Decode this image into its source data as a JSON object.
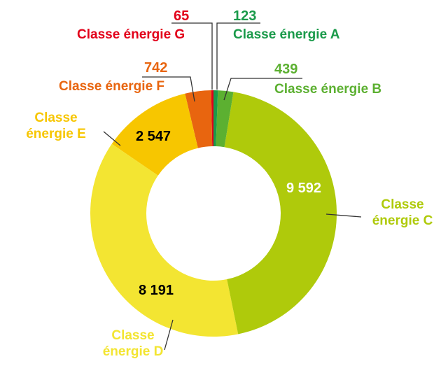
{
  "chart_data": {
    "type": "pie",
    "categories": [
      "Classe énergie A",
      "Classe énergie B",
      "Classe énergie C",
      "Classe énergie D",
      "Classe énergie E",
      "Classe énergie F",
      "Classe énergie G"
    ],
    "values": [
      123,
      439,
      9592,
      8191,
      2547,
      742,
      65
    ],
    "value_labels": [
      "123",
      "439",
      "9 592",
      "8 191",
      "2 547",
      "742",
      "65"
    ],
    "colors": [
      "#1a9a4a",
      "#5cb031",
      "#afca0b",
      "#f3e532",
      "#f7c600",
      "#e8650f",
      "#e2001a"
    ]
  }
}
